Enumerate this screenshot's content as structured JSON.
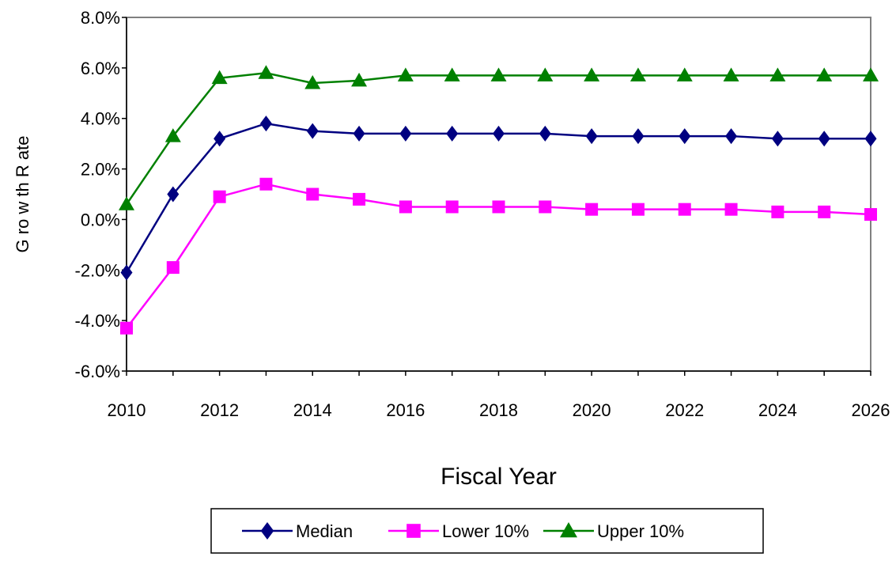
{
  "chart_data": {
    "type": "line",
    "title": "",
    "xlabel": "Fiscal Year",
    "ylabel": "G ro w th  R ate",
    "x": [
      2010,
      2011,
      2012,
      2013,
      2014,
      2015,
      2016,
      2017,
      2018,
      2019,
      2020,
      2021,
      2022,
      2023,
      2024,
      2025,
      2026
    ],
    "x_ticks": [
      2010,
      2012,
      2014,
      2016,
      2018,
      2020,
      2022,
      2024,
      2026
    ],
    "x_tick_labels": [
      "2010",
      "2012",
      "2014",
      "2016",
      "2018",
      "2020",
      "2022",
      "2024",
      "2026"
    ],
    "xlim": [
      2010,
      2026
    ],
    "ylim": [
      -0.06,
      0.08
    ],
    "y_ticks": [
      -0.06,
      -0.04,
      -0.02,
      0.0,
      0.02,
      0.04,
      0.06,
      0.08
    ],
    "y_tick_labels": [
      "-6.0%",
      "-4.0%",
      "-2.0%",
      "0.0%",
      "2.0%",
      "4.0%",
      "6.0%",
      "8.0%"
    ],
    "grid": false,
    "legend_position": "bottom",
    "series": [
      {
        "name": "Median",
        "color": "#000080",
        "marker": "diamond",
        "values": [
          -0.021,
          0.01,
          0.032,
          0.038,
          0.035,
          0.034,
          0.034,
          0.034,
          0.034,
          0.034,
          0.033,
          0.033,
          0.033,
          0.033,
          0.032,
          0.032,
          0.032
        ]
      },
      {
        "name": "Lower 10%",
        "color": "#ff00ff",
        "marker": "square",
        "values": [
          -0.043,
          -0.019,
          0.009,
          0.014,
          0.01,
          0.008,
          0.005,
          0.005,
          0.005,
          0.005,
          0.004,
          0.004,
          0.004,
          0.004,
          0.003,
          0.003,
          0.002
        ]
      },
      {
        "name": "Upper 10%",
        "color": "#008000",
        "marker": "triangle",
        "values": [
          0.006,
          0.033,
          0.056,
          0.058,
          0.054,
          0.055,
          0.057,
          0.057,
          0.057,
          0.057,
          0.057,
          0.057,
          0.057,
          0.057,
          0.057,
          0.057,
          0.057
        ]
      }
    ]
  }
}
